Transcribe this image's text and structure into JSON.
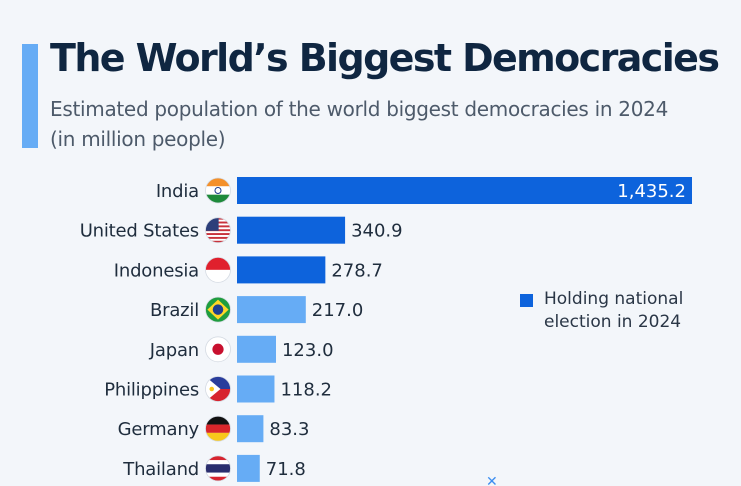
{
  "header": {
    "title": "The World’s Biggest Democracies",
    "subtitle": "Estimated population of the world biggest democracies in 2024 (in million people)"
  },
  "legend": {
    "label": "Holding national election in 2024",
    "color": "#0d63dc"
  },
  "colors": {
    "highlight": "#0d63dc",
    "default": "#66acf5",
    "accent": "#66acf5",
    "title": "#0f2641"
  },
  "chart_data": {
    "type": "bar",
    "orientation": "horizontal",
    "categories": [
      "India",
      "United States",
      "Indonesia",
      "Brazil",
      "Japan",
      "Philippines",
      "Germany",
      "Thailand"
    ],
    "values": [
      1435.2,
      340.9,
      278.7,
      217.0,
      123.0,
      118.2,
      83.3,
      71.8
    ],
    "value_labels": [
      "1,435.2",
      "340.9",
      "278.7",
      "217.0",
      "123.0",
      "118.2",
      "83.3",
      "71.8"
    ],
    "holding_election_2024": [
      true,
      true,
      true,
      false,
      false,
      false,
      false,
      false
    ],
    "flags": [
      "india-flag-icon",
      "united-states-flag-icon",
      "indonesia-flag-icon",
      "brazil-flag-icon",
      "japan-flag-icon",
      "philippines-flag-icon",
      "germany-flag-icon",
      "thailand-flag-icon"
    ],
    "title": "The World’s Biggest Democracies",
    "xlabel": "",
    "ylabel": "",
    "legend_position": "right",
    "grid": false
  }
}
